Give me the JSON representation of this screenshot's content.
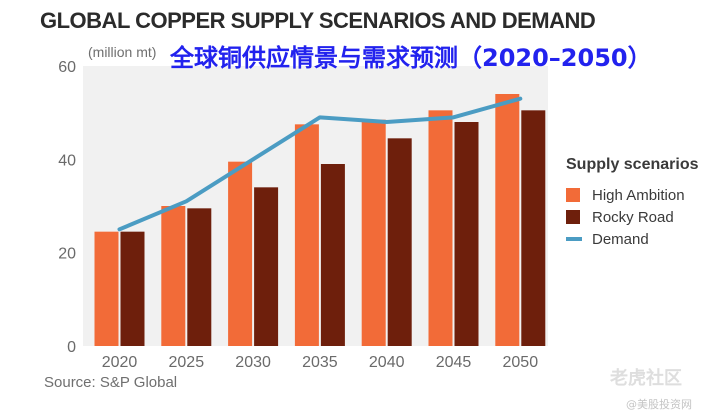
{
  "chart_data": {
    "type": "bar",
    "title": "GLOBAL COPPER SUPPLY SCENARIOS AND DEMAND",
    "overlay_title": "全球铜供应情景与需求预测（2020–2050）",
    "ylabel": "(million mt)",
    "xlabel": "",
    "ylim": [
      0,
      60
    ],
    "yticks": [
      0,
      20,
      40,
      60
    ],
    "categories": [
      "2020",
      "2025",
      "2030",
      "2035",
      "2040",
      "2045",
      "2050"
    ],
    "series": [
      {
        "name": "High Ambition",
        "kind": "bar",
        "color": "#f26b38",
        "values": [
          24.5,
          30,
          39.5,
          47.5,
          48.5,
          50.5,
          54
        ]
      },
      {
        "name": "Rocky Road",
        "kind": "bar",
        "color": "#6e1f0c",
        "values": [
          24.5,
          29.5,
          34,
          39,
          44.5,
          48,
          50.5
        ]
      },
      {
        "name": "Demand",
        "kind": "line",
        "color": "#4b9cc3",
        "values": [
          25,
          31,
          40,
          49,
          48,
          49,
          53
        ]
      }
    ],
    "legend_title": "Supply scenarios",
    "legend_position": "right",
    "grid": false,
    "background": "#f1f1f1",
    "source": "Source: S&P Global"
  },
  "watermark": {
    "brand": "老虎社区",
    "sub": "@美股投资网"
  }
}
